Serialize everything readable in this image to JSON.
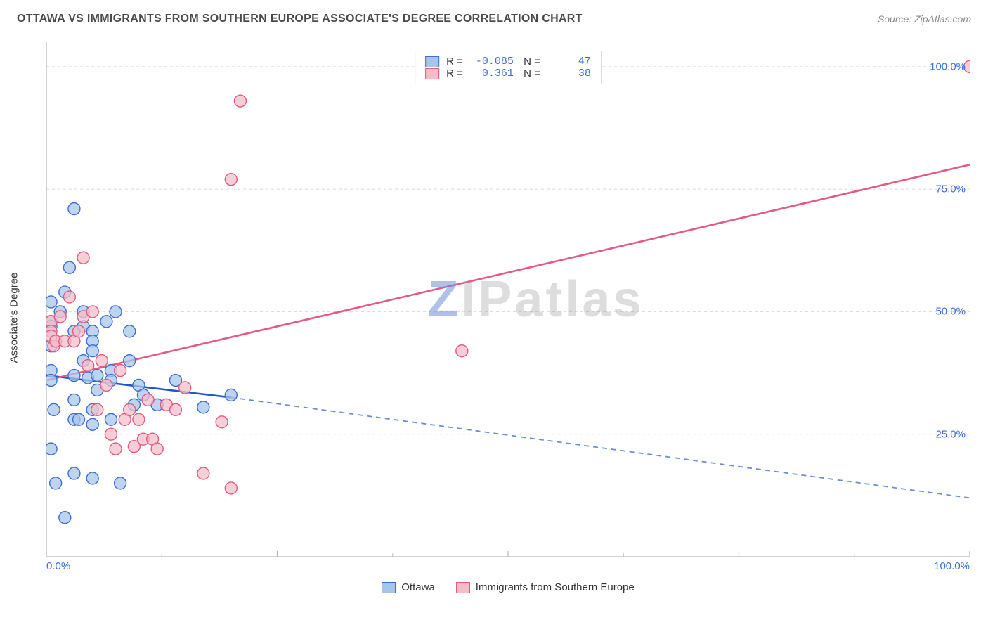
{
  "header": {
    "title": "OTTAWA VS IMMIGRANTS FROM SOUTHERN EUROPE ASSOCIATE'S DEGREE CORRELATION CHART",
    "source_prefix": "Source: ",
    "source_name": "ZipAtlas.com"
  },
  "watermark": {
    "letter": "Z",
    "rest": "IPatlas"
  },
  "chart": {
    "type": "scatter",
    "ylabel": "Associate's Degree",
    "xlim": [
      0,
      100
    ],
    "ylim": [
      0,
      105
    ],
    "background_color": "#ffffff",
    "grid_color": "#d9d9d9",
    "axis_color": "#b8b8b8",
    "tick_length": 8,
    "tick_color": "#b8b8b8",
    "ytick_values": [
      25,
      50,
      75,
      100
    ],
    "ytick_labels": [
      "25.0%",
      "50.0%",
      "75.0%",
      "100.0%"
    ],
    "xtick_values": [
      0,
      25,
      50,
      75,
      100
    ],
    "xtick_minor": [
      12.5,
      37.5,
      62.5,
      87.5
    ],
    "xtick_label_left": "0.0%",
    "xtick_label_right": "100.0%",
    "label_fontsize": 15,
    "label_color": "#3b6fd6",
    "marker_radius": 8.5,
    "marker_stroke_width": 1.4,
    "series": [
      {
        "name": "Ottawa",
        "fill": "#a8c5e9",
        "stroke": "#3b6fd6",
        "fill_opacity": 0.75,
        "R": "-0.085",
        "N": "47",
        "trend": {
          "x0": 0,
          "y0": 37,
          "x_solid_end": 20,
          "y_solid_end": 32.5,
          "x1": 100,
          "y1": 12,
          "stroke_width": 2.6,
          "solid_color": "#2256c4",
          "dash_color": "#6a8fd6"
        },
        "points": [
          [
            0.5,
            52
          ],
          [
            0.5,
            48
          ],
          [
            0.5,
            47
          ],
          [
            0.5,
            43
          ],
          [
            0.5,
            38
          ],
          [
            0.5,
            36
          ],
          [
            0.8,
            30
          ],
          [
            0.5,
            22
          ],
          [
            1,
            15
          ],
          [
            2,
            8
          ],
          [
            1.5,
            50
          ],
          [
            2,
            54
          ],
          [
            2.5,
            59
          ],
          [
            3,
            71
          ],
          [
            3,
            46
          ],
          [
            3,
            37
          ],
          [
            3,
            32
          ],
          [
            3,
            28
          ],
          [
            3.5,
            28
          ],
          [
            3,
            17
          ],
          [
            4,
            50
          ],
          [
            4,
            47
          ],
          [
            4,
            40
          ],
          [
            4.5,
            36.5
          ],
          [
            5,
            46
          ],
          [
            5,
            44
          ],
          [
            5,
            42
          ],
          [
            5.5,
            37
          ],
          [
            5.5,
            34
          ],
          [
            5,
            30
          ],
          [
            5,
            27
          ],
          [
            5,
            16
          ],
          [
            6.5,
            48
          ],
          [
            7,
            38
          ],
          [
            7,
            36
          ],
          [
            7,
            28
          ],
          [
            7.5,
            50
          ],
          [
            8,
            15
          ],
          [
            9,
            46
          ],
          [
            9,
            40
          ],
          [
            9.5,
            31
          ],
          [
            10,
            35
          ],
          [
            10.5,
            33
          ],
          [
            12,
            31
          ],
          [
            14,
            36
          ],
          [
            17,
            30.5
          ],
          [
            20,
            33
          ]
        ]
      },
      {
        "name": "Immigrants from Southern Europe",
        "fill": "#f5bdca",
        "stroke": "#e55a82",
        "fill_opacity": 0.75,
        "R": "0.361",
        "N": "38",
        "trend": {
          "x0": 0,
          "y0": 36,
          "x1": 100,
          "y1": 80,
          "stroke_width": 2.6,
          "solid_color": "#e55a82"
        },
        "points": [
          [
            0.5,
            48
          ],
          [
            0.5,
            46
          ],
          [
            0.5,
            45
          ],
          [
            0.8,
            43
          ],
          [
            1,
            44
          ],
          [
            1.5,
            49
          ],
          [
            2,
            44
          ],
          [
            2.5,
            53
          ],
          [
            3,
            44
          ],
          [
            3.5,
            46
          ],
          [
            4,
            61
          ],
          [
            4,
            49
          ],
          [
            4.5,
            39
          ],
          [
            5,
            50
          ],
          [
            5.5,
            30
          ],
          [
            6,
            40
          ],
          [
            6.5,
            35
          ],
          [
            7,
            25
          ],
          [
            7.5,
            22
          ],
          [
            8,
            38
          ],
          [
            8.5,
            28
          ],
          [
            9,
            30
          ],
          [
            9.5,
            22.5
          ],
          [
            10,
            28
          ],
          [
            10.5,
            24
          ],
          [
            11,
            32
          ],
          [
            11.5,
            24
          ],
          [
            12,
            22
          ],
          [
            13,
            31
          ],
          [
            14,
            30
          ],
          [
            15,
            34.5
          ],
          [
            17,
            17
          ],
          [
            19,
            27.5
          ],
          [
            20,
            14
          ],
          [
            20,
            77
          ],
          [
            21,
            93
          ],
          [
            45,
            42
          ],
          [
            100,
            100
          ]
        ]
      }
    ],
    "bottom_legend": [
      {
        "label": "Ottawa",
        "fill": "#a8c5e9",
        "stroke": "#3b6fd6"
      },
      {
        "label": "Immigrants from Southern Europe",
        "fill": "#f5bdca",
        "stroke": "#e55a82"
      }
    ]
  }
}
